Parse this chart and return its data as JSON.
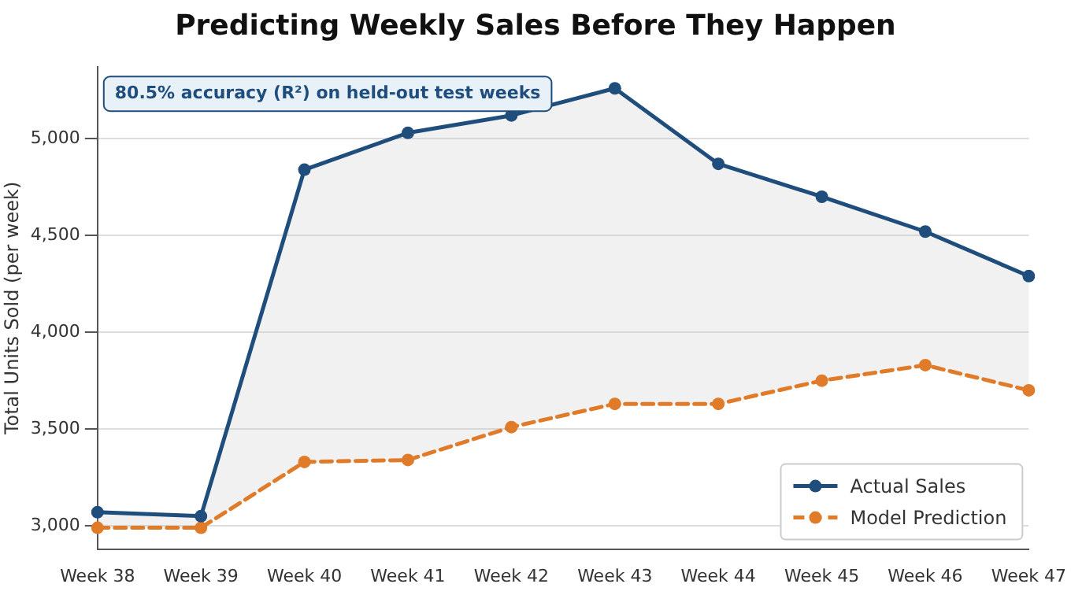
{
  "chart_data": {
    "type": "line",
    "title": "Predicting Weekly Sales Before They Happen",
    "ylabel": "Total Units Sold (per week)",
    "categories": [
      "Week 38",
      "Week 39",
      "Week 40",
      "Week 41",
      "Week 42",
      "Week 43",
      "Week 44",
      "Week 45",
      "Week 46",
      "Week 47"
    ],
    "series": [
      {
        "name": "Actual Sales",
        "color": "#1f4e7d",
        "values": [
          3070,
          3050,
          4840,
          5030,
          5120,
          5260,
          4870,
          4700,
          4520,
          4290
        ],
        "lower": [
          2990,
          2990,
          3330,
          3340,
          3510,
          3630,
          3630,
          3750,
          3830,
          3700
        ],
        "upper": [
          3070,
          3050,
          4840,
          5030,
          5120,
          5260,
          4870,
          4700,
          4520,
          4290
        ],
        "line_style": "solid"
      },
      {
        "name": "Model Prediction",
        "color": "#e07b2a",
        "values": [
          2990,
          2990,
          3330,
          3340,
          3510,
          3630,
          3630,
          3750,
          3830,
          3700
        ],
        "line_style": "dashed"
      }
    ],
    "ylim": [
      2880,
      5370
    ],
    "yticks": [
      {
        "value": 3000,
        "label": "3,000"
      },
      {
        "value": 3500,
        "label": "3,500"
      },
      {
        "value": 4000,
        "label": "4,000"
      },
      {
        "value": 4500,
        "label": "4,500"
      },
      {
        "value": 5000,
        "label": "5,000"
      }
    ],
    "grid": "y",
    "legend": "bottom right",
    "marker": "circle",
    "annotations": [
      "80.5% accuracy (R²) on held-out test weeks"
    ]
  }
}
